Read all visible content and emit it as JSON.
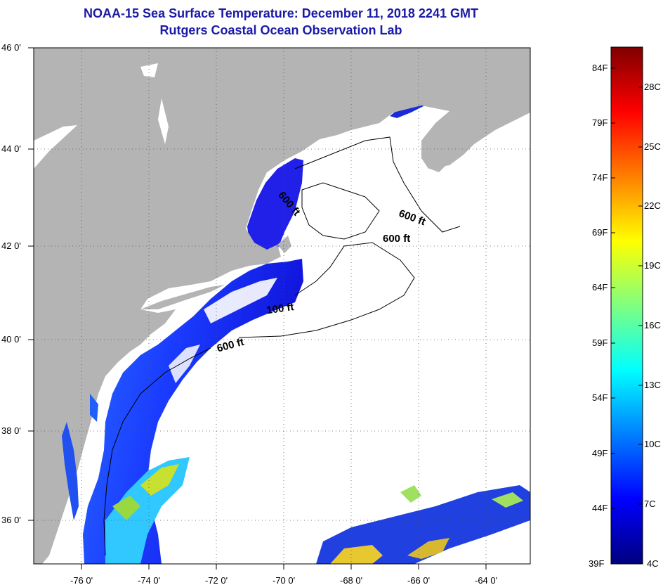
{
  "title": {
    "line1": "NOAA-15 Sea Surface Temperature:  December 11, 2018 2241 GMT",
    "line2": "Rutgers Coastal Ocean Observation Lab"
  },
  "map": {
    "lon_labels": [
      "-76 0'",
      "-74 0'",
      "-72 0'",
      "-70 0'",
      "-68 0'",
      "-66 0'",
      "-64 0'"
    ],
    "lat_labels": [
      "46 0'",
      "44 0'",
      "42 0'",
      "40 0'",
      "38 0'",
      "36 0'"
    ],
    "contour_labels": [
      "600 ft",
      "600 ft",
      "600 ft",
      "100 ft",
      "600 ft"
    ],
    "colors": {
      "land": "#b4b4b4",
      "cloud": "#ffffff"
    }
  },
  "colorbar": {
    "f_labels": [
      "84F",
      "79F",
      "74F",
      "69F",
      "64F",
      "59F",
      "54F",
      "49F",
      "44F",
      "39F"
    ],
    "c_labels": [
      "28C",
      "25C",
      "22C",
      "19C",
      "16C",
      "13C",
      "10C",
      "7C",
      "4C"
    ],
    "stops": [
      "#00007f",
      "#0000ff",
      "#007fff",
      "#00ffff",
      "#7fff7f",
      "#ffff00",
      "#ff7f00",
      "#ff0000",
      "#7f0000"
    ]
  }
}
